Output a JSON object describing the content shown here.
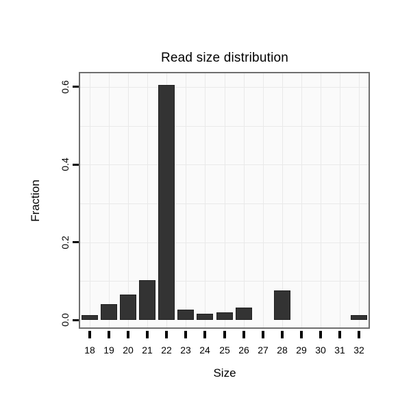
{
  "chart_data": {
    "type": "bar",
    "title": "Read size distribution",
    "xlabel": "Size",
    "ylabel": "Fraction",
    "categories": [
      "18",
      "19",
      "20",
      "21",
      "22",
      "23",
      "24",
      "25",
      "26",
      "27",
      "28",
      "29",
      "30",
      "31",
      "32"
    ],
    "values": [
      0.013,
      0.041,
      0.065,
      0.102,
      0.606,
      0.026,
      0.016,
      0.02,
      0.031,
      0,
      0.076,
      0,
      0,
      0,
      0.013
    ],
    "yticks": [
      0.0,
      0.2,
      0.4,
      0.6
    ],
    "ytick_labels": [
      "0.0",
      "0.2",
      "0.4",
      "0.6"
    ],
    "ylim": [
      0,
      0.63
    ],
    "grid": true,
    "legend": "none",
    "bar_color": "#333333",
    "panel_bg": "#fafafa",
    "grid_color": "#e9e9e9"
  }
}
